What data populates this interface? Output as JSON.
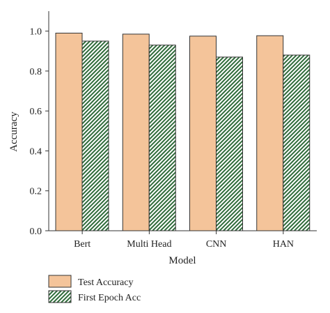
{
  "chart_data": {
    "type": "bar",
    "categories": [
      "Bert",
      "Multi Head",
      "CNN",
      "HAN"
    ],
    "series": [
      {
        "name": "Test Accuracy",
        "values": [
          0.99,
          0.985,
          0.975,
          0.977
        ],
        "color": "#f4c49a",
        "pattern": "solid"
      },
      {
        "name": "First Epoch Acc",
        "values": [
          0.95,
          0.93,
          0.87,
          0.88
        ],
        "color": "#2f6b3a",
        "pattern": "diagonal-hatch"
      }
    ],
    "xlabel": "Model",
    "ylabel": "Accuracy",
    "ylim": [
      0,
      1.1
    ],
    "yticks": [
      "0.0",
      "0.2",
      "0.4",
      "0.6",
      "0.8",
      "1.0"
    ],
    "grid": false,
    "legend_position": "bottom"
  }
}
